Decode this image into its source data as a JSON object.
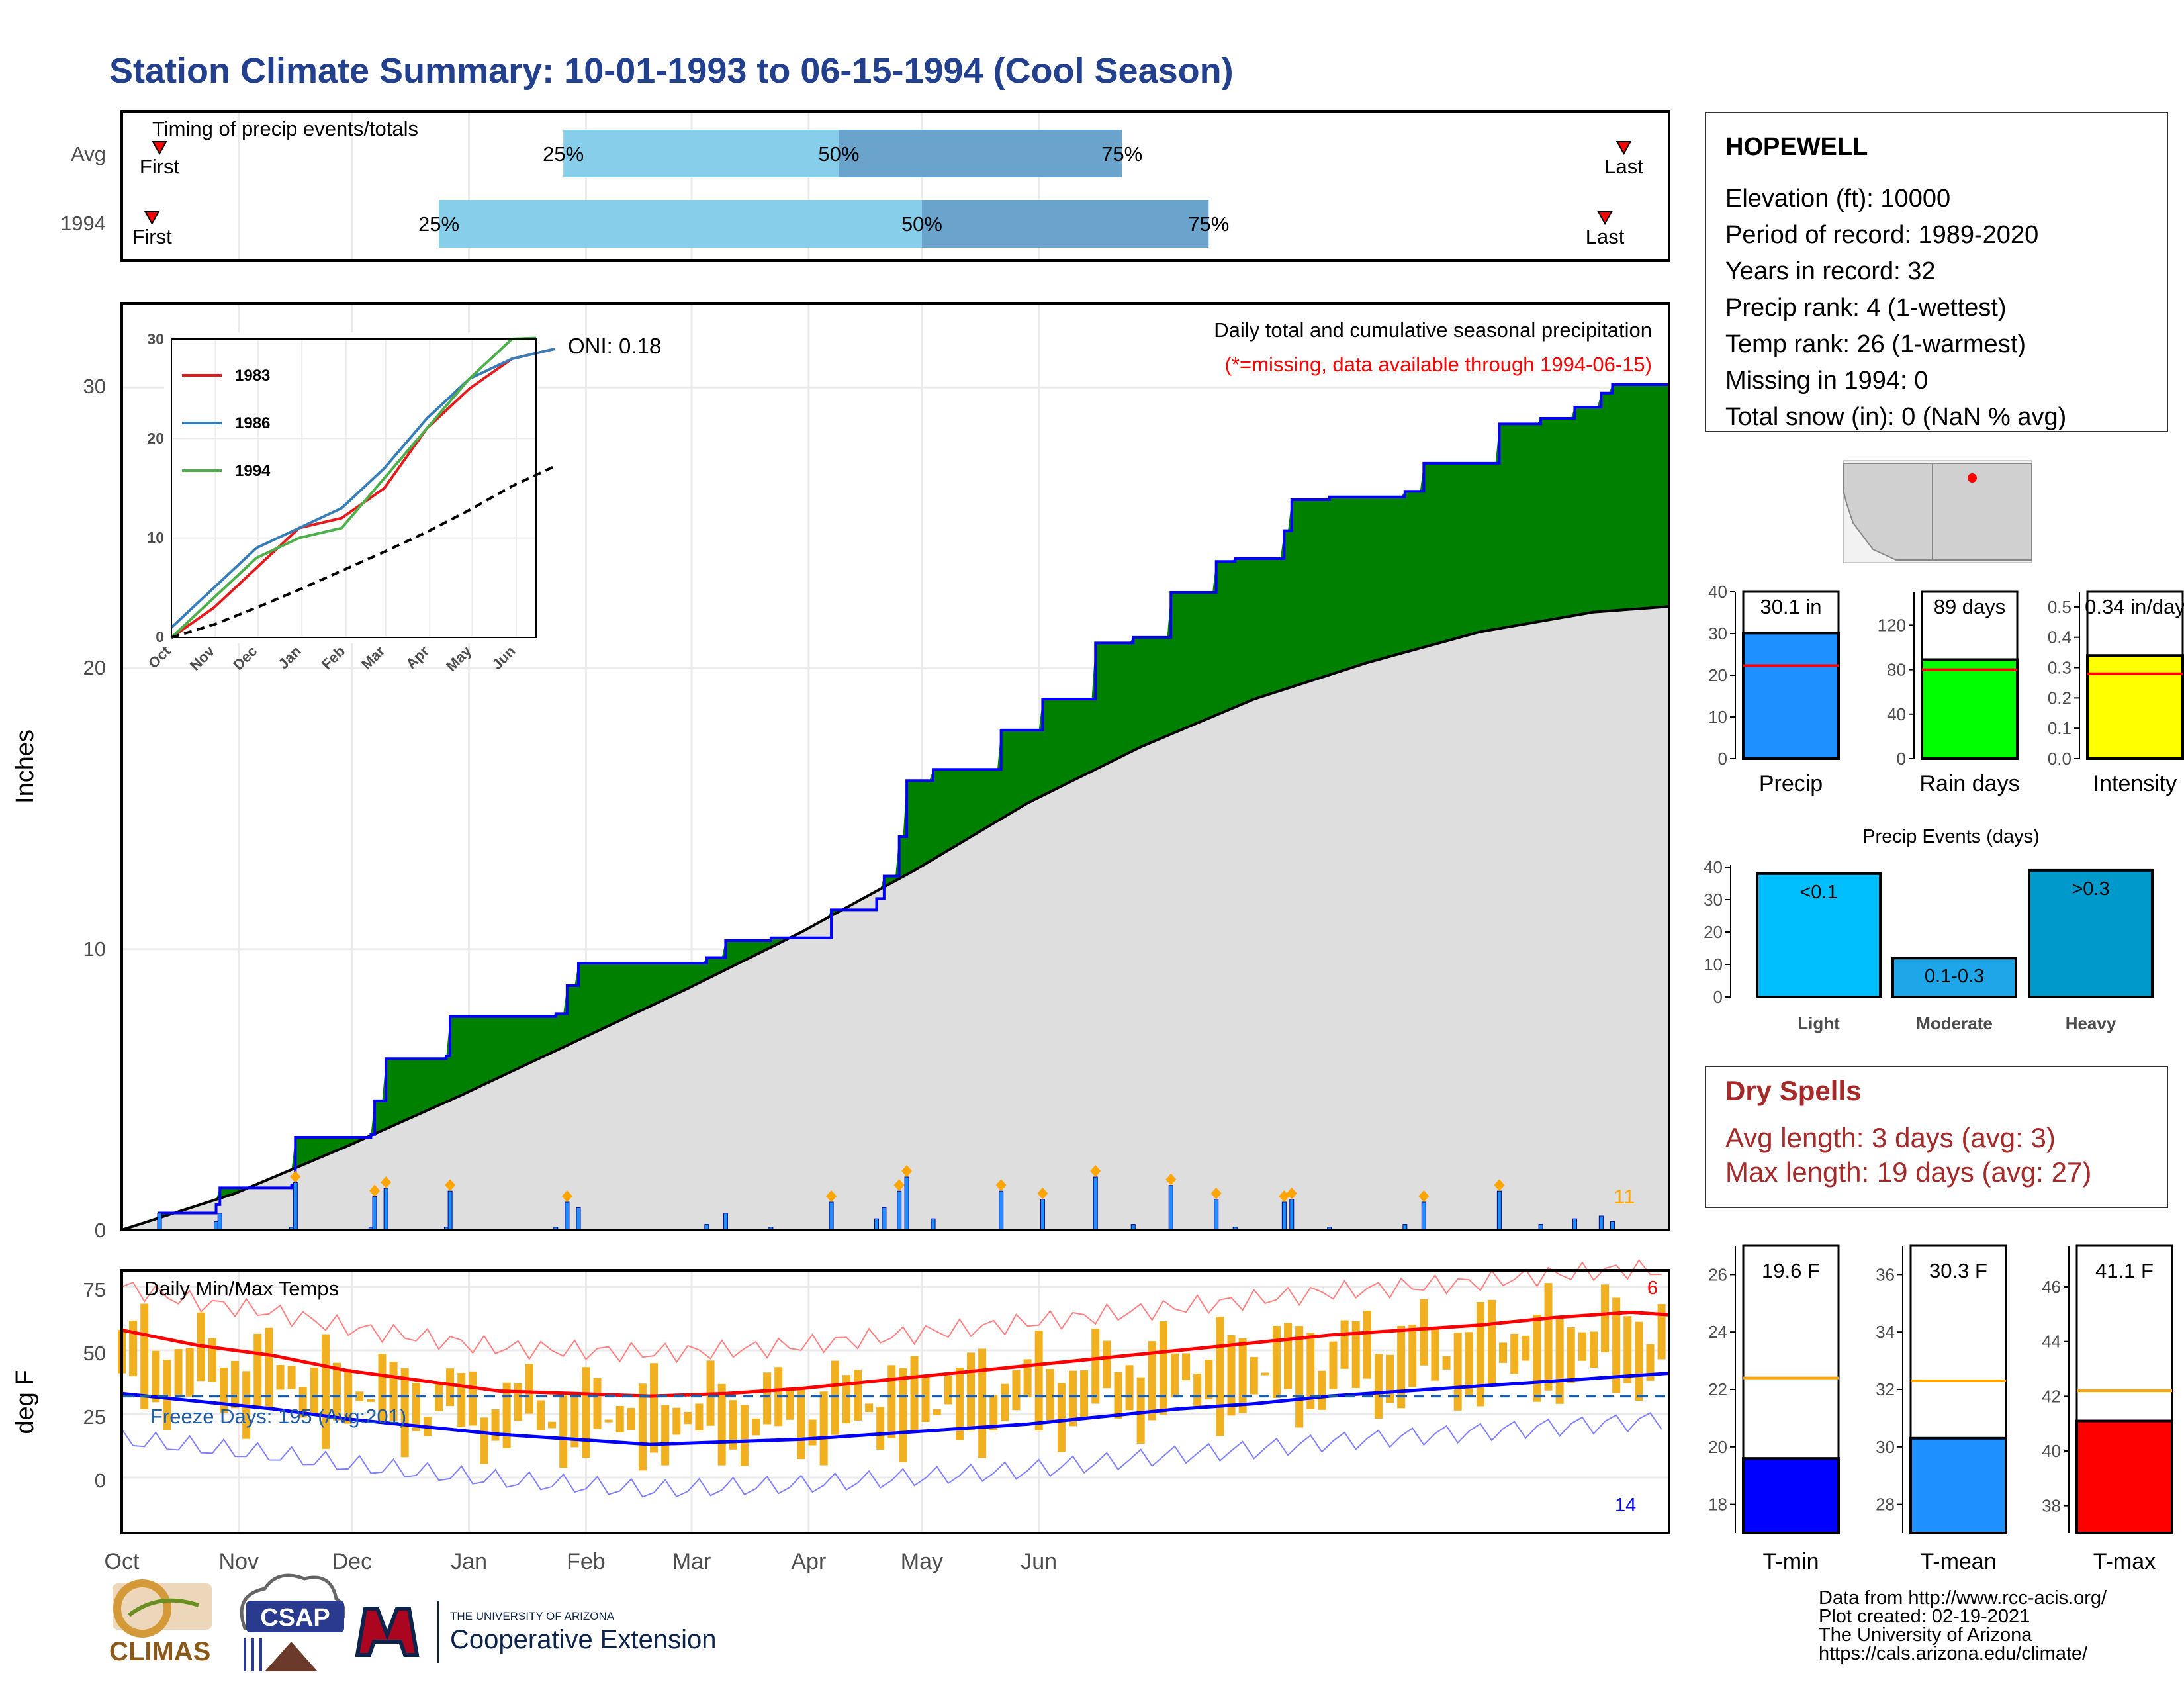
{
  "title": "Station Climate Summary: 10-01-1993 to 06-15-1994 (Cool Season)",
  "colors": {
    "title": "#23408e",
    "green_fill": "#008000",
    "blue_line": "#0000ff",
    "precip_bar": "#1e90ff",
    "rain_days_bar": "#00ff00",
    "intensity_bar": "#ffff00",
    "light_bar": "#00bfff",
    "moderate_bar": "#1ea6e8",
    "heavy_bar": "#0099cc",
    "tmin_bar": "#0000ff",
    "tmean_bar": "#1e90ff",
    "tmax_bar": "#ff0000",
    "dry_spells_text": "#a52a2a",
    "range_bar": "#f0b020",
    "quartile_light": "#87ceeb",
    "quartile_dark": "#6aa3cc"
  },
  "timing_panel": {
    "title": "Timing of precip events/totals",
    "rows": [
      {
        "label": "Avg",
        "first": "First",
        "last": "Last",
        "p25": "25%",
        "p50": "50%",
        "p75": "75%"
      },
      {
        "label": "1994",
        "first": "First",
        "last": "Last",
        "p25": "25%",
        "p50": "50%",
        "p75": "75%"
      }
    ],
    "data": {
      "avg": {
        "first_day": 10,
        "p25_day": 117,
        "p50_day": 190,
        "p75_day": 265,
        "last_day": 398
      },
      "1994": {
        "first_day": 8,
        "p25_day": 84,
        "p50_day": 212,
        "p75_day": 288,
        "last_day": 393
      }
    }
  },
  "main_panel": {
    "ylabel": "Inches",
    "yticks": [
      "0",
      "10",
      "20",
      "30"
    ],
    "oni": "ONI: 0.18",
    "subtitle": "Daily total and cumulative seasonal precipitation",
    "missing_note": "(*=missing, data available through 1994-06-15)",
    "count_label": "11"
  },
  "inset": {
    "yticks": [
      "0",
      "10",
      "20",
      "30"
    ],
    "xticks": [
      "Oct",
      "Nov",
      "Dec",
      "Jan",
      "Feb",
      "Mar",
      "Apr",
      "May",
      "Jun"
    ],
    "legend": [
      "1983",
      "1986",
      "1994"
    ]
  },
  "temp_panel": {
    "title": "Daily Min/Max Temps",
    "ylabel": "deg F",
    "yticks": [
      "0",
      "25",
      "50",
      "75"
    ],
    "freeze_label": "Freeze Days: 195 (Avg:201)",
    "max_count": "6",
    "min_count": "14"
  },
  "x_axis": {
    "ticks": [
      "Oct",
      "Nov",
      "Dec",
      "Jan",
      "Feb",
      "Mar",
      "Apr",
      "May",
      "Jun"
    ]
  },
  "station": {
    "name": "HOPEWELL",
    "lines": [
      "Elevation (ft): 10000",
      "Period of record: 1989-2020",
      "Years in record: 32",
      "Precip rank: 4 (1-wettest)",
      "Temp rank: 26 (1-warmest)",
      "Missing in 1994: 0",
      "Total snow (in): 0 (NaN % avg)"
    ]
  },
  "summary_bars": [
    {
      "label": "Precip",
      "value_text": "30.1 in",
      "yticks": [
        "0",
        "10",
        "20",
        "30",
        "40"
      ]
    },
    {
      "label": "Rain days",
      "value_text": "89 days",
      "yticks": [
        "0",
        "40",
        "80",
        "120"
      ]
    },
    {
      "label": "Intensity",
      "value_text": "0.34 in/day",
      "yticks": [
        "0.0",
        "0.1",
        "0.2",
        "0.3",
        "0.4",
        "0.5"
      ]
    }
  ],
  "events": {
    "title": "Precip Events (days)",
    "yticks": [
      "0",
      "10",
      "20",
      "30",
      "40"
    ],
    "bars": [
      {
        "label": "<0.1",
        "category": "Light"
      },
      {
        "label": "0.1-0.3",
        "category": "Moderate"
      },
      {
        "label": ">0.3",
        "category": "Heavy"
      }
    ]
  },
  "dry_spells": {
    "title": "Dry Spells",
    "avg": "Avg length: 3 days (avg: 3)",
    "max": "Max length: 19 days (avg: 27)"
  },
  "temp_bars": [
    {
      "label": "T-min",
      "value_text": "19.6 F",
      "yticks": [
        "18",
        "20",
        "22",
        "24",
        "26"
      ]
    },
    {
      "label": "T-mean",
      "value_text": "30.3 F",
      "yticks": [
        "28",
        "30",
        "32",
        "34",
        "36"
      ]
    },
    {
      "label": "T-max",
      "value_text": "41.1 F",
      "yticks": [
        "38",
        "40",
        "42",
        "44",
        "46"
      ]
    }
  ],
  "footer": {
    "lines": [
      "Data from http://www.rcc-acis.org/",
      "Plot created: 02-19-2021",
      "The University of Arizona",
      "https://cals.arizona.edu/climate/"
    ],
    "logo_climas": "CLIMAS",
    "logo_csap": "CSAP",
    "ua_small": "THE UNIVERSITY OF ARIZONA",
    "ua_big": "Cooperative Extension"
  },
  "chart_data": [
    {
      "type": "area",
      "title": "Daily total and cumulative seasonal precipitation",
      "ylabel": "Inches",
      "ylim": [
        0,
        33
      ],
      "x_unit": "day of season (0 = Oct 1)",
      "cumulative_1994": [
        [
          0,
          0
        ],
        [
          10,
          0.6
        ],
        [
          25,
          0.9
        ],
        [
          26,
          1.5
        ],
        [
          45,
          1.6
        ],
        [
          46,
          3.3
        ],
        [
          66,
          3.4
        ],
        [
          67,
          4.6
        ],
        [
          70,
          6.1
        ],
        [
          86,
          6.2
        ],
        [
          87,
          7.6
        ],
        [
          115,
          7.7
        ],
        [
          118,
          8.7
        ],
        [
          121,
          9.5
        ],
        [
          155,
          9.7
        ],
        [
          160,
          10.3
        ],
        [
          172,
          10.4
        ],
        [
          185,
          10.4
        ],
        [
          188,
          11.4
        ],
        [
          200,
          11.8
        ],
        [
          202,
          12.6
        ],
        [
          206,
          14.0
        ],
        [
          208,
          16.0
        ],
        [
          215,
          16.4
        ],
        [
          233,
          17.8
        ],
        [
          244,
          18.9
        ],
        [
          258,
          20.9
        ],
        [
          268,
          21.1
        ],
        [
          278,
          22.7
        ],
        [
          290,
          23.8
        ],
        [
          295,
          23.9
        ],
        [
          308,
          24.9
        ],
        [
          310,
          26.0
        ],
        [
          320,
          26.1
        ],
        [
          340,
          26.3
        ],
        [
          345,
          27.3
        ],
        [
          365,
          28.7
        ],
        [
          376,
          28.9
        ],
        [
          385,
          29.3
        ],
        [
          392,
          29.8
        ],
        [
          395,
          30.1
        ],
        [
          410,
          30.1
        ]
      ],
      "cumulative_avg": [
        [
          0,
          0
        ],
        [
          30,
          1.3
        ],
        [
          60,
          3.0
        ],
        [
          90,
          4.8
        ],
        [
          120,
          6.7
        ],
        [
          150,
          8.6
        ],
        [
          180,
          10.6
        ],
        [
          210,
          12.8
        ],
        [
          240,
          15.2
        ],
        [
          270,
          17.2
        ],
        [
          300,
          18.9
        ],
        [
          330,
          20.2
        ],
        [
          360,
          21.3
        ],
        [
          390,
          22.0
        ],
        [
          410,
          22.2
        ]
      ],
      "daily_markers_count": 11
    },
    {
      "type": "line",
      "title": "",
      "ylim": [
        0,
        30
      ],
      "series": [
        {
          "name": "1983",
          "values": [
            [
              0,
              0
            ],
            [
              30,
              3
            ],
            [
              60,
              7
            ],
            [
              90,
              11
            ],
            [
              120,
              12
            ],
            [
              150,
              15
            ],
            [
              180,
              21
            ],
            [
              210,
              25
            ],
            [
              240,
              28
            ],
            [
              270,
              29
            ]
          ]
        },
        {
          "name": "1986",
          "values": [
            [
              0,
              1
            ],
            [
              30,
              5
            ],
            [
              60,
              9
            ],
            [
              90,
              11
            ],
            [
              120,
              13
            ],
            [
              150,
              17
            ],
            [
              180,
              22
            ],
            [
              210,
              26
            ],
            [
              240,
              28
            ],
            [
              270,
              29
            ]
          ]
        },
        {
          "name": "1994",
          "values": [
            [
              0,
              0
            ],
            [
              30,
              4
            ],
            [
              60,
              8
            ],
            [
              90,
              10
            ],
            [
              120,
              11
            ],
            [
              150,
              16
            ],
            [
              180,
              21
            ],
            [
              210,
              26
            ],
            [
              240,
              30
            ],
            [
              257,
              30.1
            ]
          ]
        },
        {
          "name": "avg",
          "values": [
            [
              0,
              0
            ],
            [
              30,
              1.3
            ],
            [
              60,
              3
            ],
            [
              90,
              4.8
            ],
            [
              120,
              6.7
            ],
            [
              150,
              8.6
            ],
            [
              180,
              10.6
            ],
            [
              210,
              12.8
            ],
            [
              240,
              15.2
            ],
            [
              270,
              17.2
            ]
          ]
        }
      ]
    },
    {
      "type": "bar",
      "title": "Daily Min/Max Temps",
      "ylabel": "deg F",
      "ylim": [
        -20,
        80
      ],
      "freeze_threshold": 32,
      "avg_max_curve": [
        [
          0,
          58
        ],
        [
          20,
          52
        ],
        [
          40,
          48
        ],
        [
          60,
          42
        ],
        [
          80,
          38
        ],
        [
          100,
          34
        ],
        [
          120,
          33
        ],
        [
          140,
          32
        ],
        [
          160,
          33
        ],
        [
          180,
          35
        ],
        [
          200,
          38
        ],
        [
          220,
          41
        ],
        [
          240,
          44
        ],
        [
          260,
          47
        ],
        [
          280,
          50
        ],
        [
          300,
          53
        ],
        [
          320,
          56
        ],
        [
          340,
          58
        ],
        [
          360,
          60
        ],
        [
          380,
          63
        ],
        [
          400,
          65
        ],
        [
          410,
          64
        ]
      ],
      "avg_min_curve": [
        [
          0,
          33
        ],
        [
          20,
          30
        ],
        [
          40,
          27
        ],
        [
          60,
          23
        ],
        [
          80,
          20
        ],
        [
          100,
          17
        ],
        [
          120,
          15
        ],
        [
          140,
          13
        ],
        [
          160,
          14
        ],
        [
          180,
          15
        ],
        [
          200,
          17
        ],
        [
          220,
          19
        ],
        [
          240,
          21
        ],
        [
          260,
          24
        ],
        [
          280,
          27
        ],
        [
          300,
          29
        ],
        [
          320,
          32
        ],
        [
          340,
          34
        ],
        [
          360,
          36
        ],
        [
          380,
          38
        ],
        [
          400,
          40
        ],
        [
          410,
          41
        ]
      ],
      "record_max_count": 6,
      "record_min_count": 14
    },
    {
      "type": "bar",
      "categories": [
        "Precip",
        "Rain days",
        "Intensity"
      ],
      "values": [
        30.1,
        89,
        0.34
      ],
      "averages": [
        22.3,
        80,
        0.28
      ]
    },
    {
      "type": "bar",
      "title": "Precip Events (days)",
      "categories": [
        "Light",
        "Moderate",
        "Heavy"
      ],
      "values": [
        38,
        12,
        39
      ],
      "ylim": [
        0,
        40
      ]
    },
    {
      "type": "bar",
      "categories": [
        "T-min",
        "T-mean",
        "T-max"
      ],
      "values": [
        19.6,
        30.3,
        41.1
      ],
      "averages": [
        22.4,
        32.3,
        42.2
      ]
    }
  ]
}
